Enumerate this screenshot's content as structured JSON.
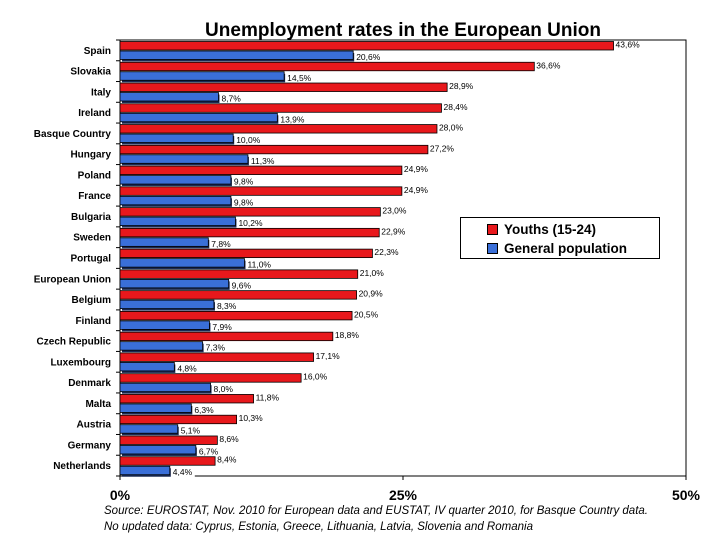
{
  "chart_data": {
    "type": "bar",
    "orientation": "horizontal",
    "title": "Unemployment rates in the European Union",
    "categories": [
      "Spain",
      "Slovakia",
      "Italy",
      "Ireland",
      "Basque Country",
      "Hungary",
      "Poland",
      "France",
      "Bulgaria",
      "Sweden",
      "Portugal",
      "European Union",
      "Belgium",
      "Finland",
      "Czech Republic",
      "Luxembourg",
      "Denmark",
      "Malta",
      "Austria",
      "Germany",
      "Netherlands"
    ],
    "series": [
      {
        "name": "Youths (15-24)",
        "color": "#e8181c",
        "values": [
          43.6,
          36.6,
          28.9,
          28.4,
          28.0,
          27.2,
          24.9,
          24.9,
          23.0,
          22.9,
          22.3,
          21.0,
          20.9,
          20.5,
          18.8,
          17.1,
          16.0,
          11.8,
          10.3,
          8.6,
          8.4
        ],
        "labels": [
          "43,6%",
          "36,6%",
          "28,9%",
          "28,4%",
          "28,0%",
          "27,2%",
          "24,9%",
          "24,9%",
          "23,0%",
          "22,9%",
          "22,3%",
          "21,0%",
          "20,9%",
          "20,5%",
          "18,8%",
          "17,1%",
          "16,0%",
          "11,8%",
          "10,3%",
          "8,6%",
          "8,4%"
        ]
      },
      {
        "name": "General population",
        "color": "#3a6fd8",
        "values": [
          20.6,
          14.5,
          8.7,
          13.9,
          10.0,
          11.3,
          9.8,
          9.8,
          10.2,
          7.8,
          11.0,
          9.6,
          8.3,
          7.9,
          7.3,
          4.8,
          8.0,
          6.3,
          5.1,
          6.7,
          4.4
        ],
        "labels": [
          "20,6%",
          "14,5%",
          "8,7%",
          "13,9%",
          "10,0%",
          "11,3%",
          "9,8%",
          "9,8%",
          "10,2%",
          "7,8%",
          "11,0%",
          "9,6%",
          "8,3%",
          "7,9%",
          "7,3%",
          "4,8%",
          "8,0%",
          "6,3%",
          "5,1%",
          "6,7%",
          "4,4%"
        ]
      }
    ],
    "xlim": [
      0,
      50
    ],
    "xticks": [
      0,
      25,
      50
    ],
    "xtick_labels": [
      "0%",
      "25%",
      "50%"
    ],
    "legend_position": "right-middle",
    "grid": false
  },
  "footnote": {
    "line1": "Source: EUROSTAT, Nov. 2010 for European data and EUSTAT, IV quarter 2010, for Basque Country data.",
    "line2": "No updated data: Cyprus, Estonia, Greece, Lithuania, Latvia, Slovenia and Romania"
  }
}
